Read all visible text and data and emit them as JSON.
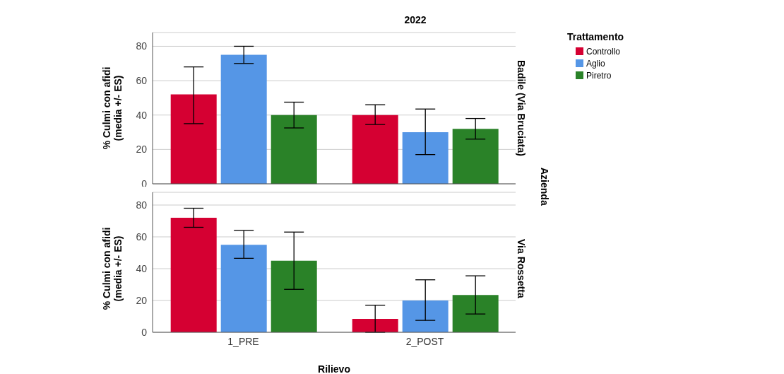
{
  "chart_data": [
    {
      "type": "bar",
      "title": "2022",
      "ylabel": "% Culmi con afidi (media +/- ES)",
      "annotations": [
        "Badile (Via Bruciata)",
        "Azienda"
      ],
      "categories": [
        null,
        null
      ],
      "ylim": [
        0,
        88
      ],
      "yticks": [
        0,
        20,
        40,
        60,
        80
      ],
      "grid": "y",
      "tick_labels": "y",
      "legend": "right",
      "legend_title": "Trattamento",
      "series": [
        {
          "name": "Controllo",
          "color": "#d50032",
          "values": [
            52,
            40
          ],
          "errors": [
            [
              35,
              68
            ],
            [
              34.5,
              46
            ]
          ]
        },
        {
          "name": "Aglio",
          "color": "#5596e6",
          "values": [
            75,
            30
          ],
          "errors": [
            [
              70,
              80
            ],
            [
              17,
              43.5
            ]
          ]
        },
        {
          "name": "Piretro",
          "color": "#2a8228",
          "values": [
            40,
            32
          ],
          "errors": [
            [
              32.5,
              47.5
            ],
            [
              26,
              38
            ]
          ]
        }
      ]
    },
    {
      "type": "bar",
      "xlabel": "Rilievo",
      "ylabel": "% Culmi con afidi (media +/- ES)",
      "annotations": [
        "Via Rossetta"
      ],
      "categories": [
        "1_PRE",
        "2_POST"
      ],
      "ylim": [
        0,
        88
      ],
      "yticks": [
        0,
        20,
        40,
        60,
        80
      ],
      "grid": "y",
      "series": [
        {
          "color": "#d50032",
          "values": [
            72,
            8.5
          ],
          "errors": [
            [
              66,
              78
            ],
            [
              0,
              17
            ]
          ]
        },
        {
          "color": "#5596e6",
          "values": [
            55,
            20
          ],
          "errors": [
            [
              46.5,
              64
            ],
            [
              7.5,
              33
            ]
          ]
        },
        {
          "color": "#2a8228",
          "values": [
            45,
            23.5
          ],
          "errors": [
            [
              27,
              63
            ],
            [
              11.5,
              35.5
            ]
          ]
        }
      ]
    }
  ]
}
